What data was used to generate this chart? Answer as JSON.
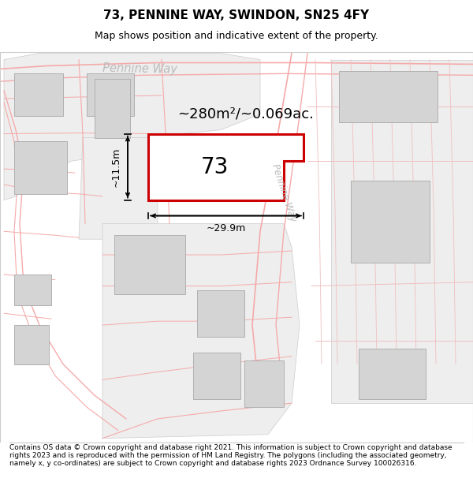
{
  "title": "73, PENNINE WAY, SWINDON, SN25 4FY",
  "subtitle": "Map shows position and indicative extent of the property.",
  "footer": "Contains OS data © Crown copyright and database right 2021. This information is subject to Crown copyright and database rights 2023 and is reproduced with the permission of HM Land Registry. The polygons (including the associated geometry, namely x, y co-ordinates) are subject to Crown copyright and database rights 2023 Ordnance Survey 100026316.",
  "area_text": "~280m²/~0.069ac.",
  "number_text": "73",
  "dim_h": "~11.5m",
  "dim_w": "~29.9m",
  "road_line_color": "#f5aaaa",
  "road_line_color2": "#f0c0c0",
  "parcel_fill": "#eeeeee",
  "parcel_edge": "#cccccc",
  "building_fill": "#d4d4d4",
  "building_edge": "#b0b0b0",
  "highlight_fill": "#ffffff",
  "highlight_edge": "#cc0000",
  "street_label_color": "#bbbbbb",
  "title_fontsize": 11,
  "subtitle_fontsize": 9,
  "footer_fontsize": 6.5
}
